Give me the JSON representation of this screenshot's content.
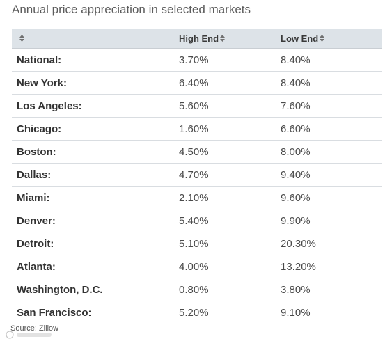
{
  "chart_data": {
    "type": "table",
    "title": "Annual price appreciation in selected markets",
    "columns": [
      "",
      "High End",
      "Low End"
    ],
    "sort_icon": "sort-arrows-icon",
    "rows": [
      {
        "market": "National:",
        "high": "3.70%",
        "low": "8.40%"
      },
      {
        "market": "New York:",
        "high": "6.40%",
        "low": "8.40%"
      },
      {
        "market": "Los Angeles:",
        "high": "5.60%",
        "low": "7.60%"
      },
      {
        "market": "Chicago:",
        "high": "1.60%",
        "low": "6.60%"
      },
      {
        "market": "Boston:",
        "high": "4.50%",
        "low": "8.00%"
      },
      {
        "market": "Dallas:",
        "high": "4.70%",
        "low": "9.40%"
      },
      {
        "market": "Miami:",
        "high": "2.10%",
        "low": "9.60%"
      },
      {
        "market": "Denver:",
        "high": "5.40%",
        "low": "9.90%"
      },
      {
        "market": "Detroit:",
        "high": "5.10%",
        "low": "20.30%"
      },
      {
        "market": "Atlanta:",
        "high": "4.00%",
        "low": "13.20%"
      },
      {
        "market": "Washington, D.C.",
        "high": "0.80%",
        "low": "3.80%"
      },
      {
        "market": "San Francisco:",
        "high": "5.20%",
        "low": "9.10%"
      }
    ],
    "source": "Source: Zillow"
  },
  "colors": {
    "header_bg": "#dde3e8",
    "row_border": "#d9dde1",
    "title": "#5c5c5c",
    "text": "#333333"
  }
}
